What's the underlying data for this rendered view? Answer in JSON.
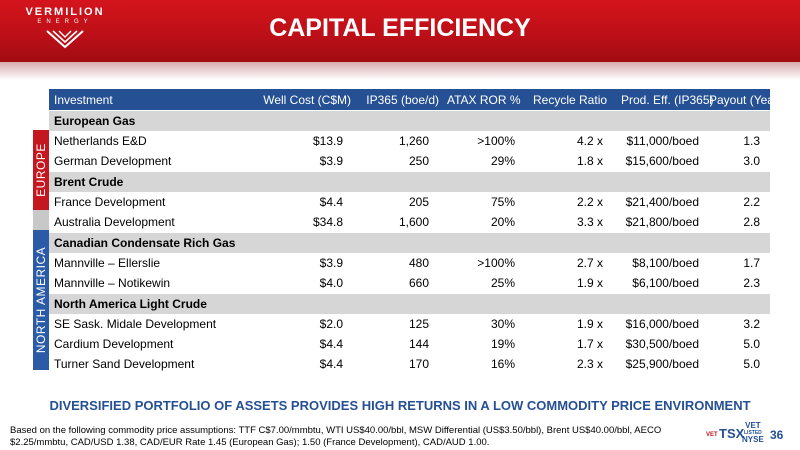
{
  "logo": {
    "name": "VERMILION",
    "sub": "ENERGY"
  },
  "title": "CAPITAL EFFICIENCY",
  "regions": {
    "europe": "EUROPE",
    "north_america": "NORTH AMERICA"
  },
  "table": {
    "headers": [
      "Investment",
      "Well Cost (C$M)",
      "IP365 (boe/d)",
      "ATAX ROR %",
      "Recycle Ratio",
      "Prod. Eff. (IP365)",
      "Payout (Years)"
    ],
    "groups": [
      {
        "name": "European Gas",
        "rows": [
          [
            "Netherlands E&D",
            "$13.9",
            "1,260",
            ">100%",
            "4.2 x",
            "$11,000/boed",
            "1.3"
          ],
          [
            "German Development",
            "$3.9",
            "250",
            "29%",
            "1.8 x",
            "$15,600/boed",
            "3.0"
          ]
        ]
      },
      {
        "name": "Brent Crude",
        "rows": [
          [
            "France Development",
            "$4.4",
            "205",
            "75%",
            "2.2 x",
            "$21,400/boed",
            "2.2"
          ],
          [
            "Australia Development",
            "$34.8",
            "1,600",
            "20%",
            "3.3 x",
            "$21,800/boed",
            "2.8"
          ]
        ]
      },
      {
        "name": "Canadian Condensate Rich Gas",
        "rows": [
          [
            "Mannville – Ellerslie",
            "$3.9",
            "480",
            ">100%",
            "2.7 x",
            "$8,100/boed",
            "1.7"
          ],
          [
            "Mannville – Notikewin",
            "$4.0",
            "660",
            "25%",
            "1.9 x",
            "$6,100/boed",
            "2.3"
          ]
        ]
      },
      {
        "name": "North America Light Crude",
        "rows": [
          [
            "SE Sask. Midale Development",
            "$2.0",
            "125",
            "30%",
            "1.9 x",
            "$16,000/boed",
            "3.2"
          ],
          [
            "Cardium Development",
            "$4.4",
            "144",
            "19%",
            "1.7 x",
            "$30,500/boed",
            "5.0"
          ],
          [
            "Turner Sand Development",
            "$4.4",
            "170",
            "16%",
            "2.3 x",
            "$25,900/boed",
            "5.0"
          ]
        ]
      }
    ]
  },
  "banner": "DIVERSIFIED PORTFOLIO OF ASSETS PROVIDES HIGH RETURNS IN A LOW COMMODITY PRICE ENVIRONMENT",
  "footnote": "Based on the following commodity price assumptions:  TTF C$7.00/mmbtu, WTI US$40.00/bbl, MSW Differential (US$3.50/bbl), Brent US$40.00/bbl, AECO $2.25/mmbtu, CAD/USD 1.38, CAD/EUR Rate 1.45 (European Gas); 1.50 (France Development), CAD/AUD 1.00.",
  "exchange": {
    "vet": "VET",
    "tsx": "TSX",
    "right_top": "VET",
    "right_mid": "LISTED",
    "right_bottom": "NYSE"
  },
  "page_number": "36",
  "colors": {
    "brand_red": "#c4171f",
    "brand_blue": "#255094",
    "group_gray": "#d6d6d6"
  }
}
